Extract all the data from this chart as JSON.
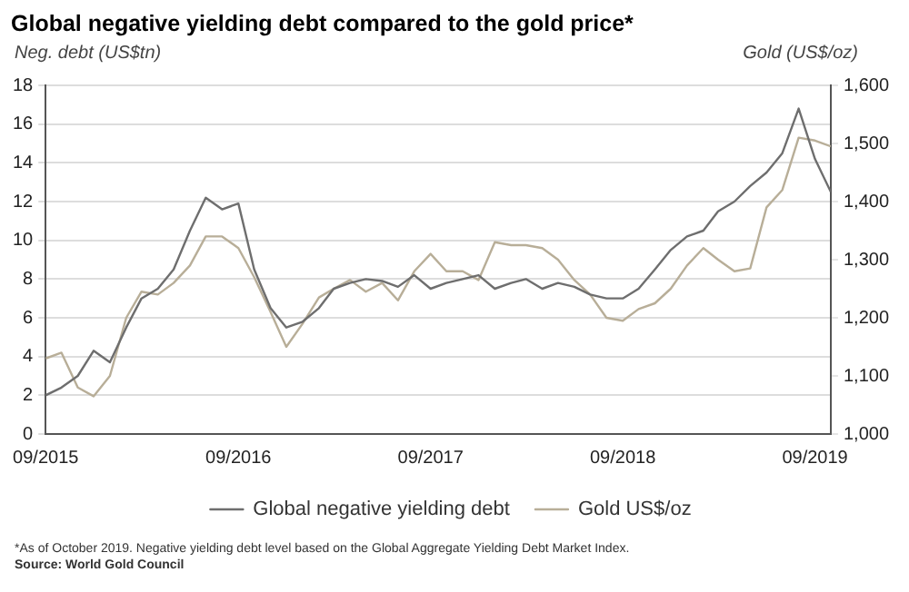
{
  "chart_data": {
    "type": "line",
    "title": "Global negative yielding debt compared to the gold price*",
    "ylabel": "Neg. debt (US$tn)",
    "y2label": "Gold (US$/oz)",
    "annotations": [
      "*As of October 2019. Negative yielding debt level based on the Global Aggregate Yielding Debt Market Index.",
      "Source: World Gold Council"
    ],
    "xlim": [
      "2015-09",
      "2019-10"
    ],
    "xticks": [
      {
        "value": "2015-09",
        "label": "09/2015"
      },
      {
        "value": "2016-09",
        "label": "09/2016"
      },
      {
        "value": "2017-09",
        "label": "09/2017"
      },
      {
        "value": "2018-09",
        "label": "09/2018"
      },
      {
        "value": "2019-09",
        "label": "09/2019"
      }
    ],
    "ylim": [
      0,
      18
    ],
    "yticks": [
      0,
      2,
      4,
      6,
      8,
      10,
      12,
      14,
      16,
      18
    ],
    "y2lim": [
      1000,
      1600
    ],
    "y2ticks": [
      {
        "value": 1000,
        "label": "1,000"
      },
      {
        "value": 1100,
        "label": "1,100"
      },
      {
        "value": 1200,
        "label": "1,200"
      },
      {
        "value": 1300,
        "label": "1,300"
      },
      {
        "value": 1400,
        "label": "1,400"
      },
      {
        "value": 1500,
        "label": "1,500"
      },
      {
        "value": 1600,
        "label": "1,600"
      }
    ],
    "x": [
      "2015-09",
      "2015-10",
      "2015-11",
      "2015-12",
      "2016-01",
      "2016-02",
      "2016-03",
      "2016-04",
      "2016-05",
      "2016-06",
      "2016-07",
      "2016-08",
      "2016-09",
      "2016-10",
      "2016-11",
      "2016-12",
      "2017-01",
      "2017-02",
      "2017-03",
      "2017-04",
      "2017-05",
      "2017-06",
      "2017-07",
      "2017-08",
      "2017-09",
      "2017-10",
      "2017-11",
      "2017-12",
      "2018-01",
      "2018-02",
      "2018-03",
      "2018-04",
      "2018-05",
      "2018-06",
      "2018-07",
      "2018-08",
      "2018-09",
      "2018-10",
      "2018-11",
      "2018-12",
      "2019-01",
      "2019-02",
      "2019-03",
      "2019-04",
      "2019-05",
      "2019-06",
      "2019-07",
      "2019-08",
      "2019-09",
      "2019-10"
    ],
    "grid": "y",
    "legend": "bottom",
    "line_style": "solid",
    "marker": "none",
    "series": [
      {
        "name": "Global negative yielding debt",
        "color": "#6e6e6e",
        "values": [
          2.0,
          2.4,
          3.0,
          4.3,
          3.7,
          5.5,
          7.0,
          7.5,
          8.5,
          10.5,
          12.2,
          11.6,
          11.9,
          8.5,
          6.5,
          5.5,
          5.8,
          6.5,
          7.5,
          7.8,
          8.0,
          7.9,
          7.6,
          8.2,
          7.5,
          7.8,
          8.0,
          8.2,
          7.5,
          7.8,
          8.0,
          7.5,
          7.8,
          7.6,
          7.2,
          7.0,
          7.0,
          7.5,
          8.5,
          9.5,
          10.2,
          10.5,
          11.5,
          12.0,
          12.8,
          13.5,
          14.5,
          16.8,
          14.2,
          12.5
        ]
      },
      {
        "name": "Gold US$/oz",
        "color": "#b8ae98",
        "axis": "y2",
        "values": [
          1130,
          1140,
          1080,
          1065,
          1100,
          1200,
          1245,
          1240,
          1260,
          1290,
          1340,
          1340,
          1320,
          1270,
          1210,
          1150,
          1190,
          1235,
          1250,
          1265,
          1245,
          1260,
          1230,
          1280,
          1310,
          1280,
          1280,
          1265,
          1330,
          1325,
          1325,
          1320,
          1300,
          1265,
          1240,
          1200,
          1195,
          1215,
          1225,
          1250,
          1290,
          1320,
          1300,
          1280,
          1285,
          1390,
          1420,
          1510,
          1505,
          1495
        ]
      }
    ]
  }
}
